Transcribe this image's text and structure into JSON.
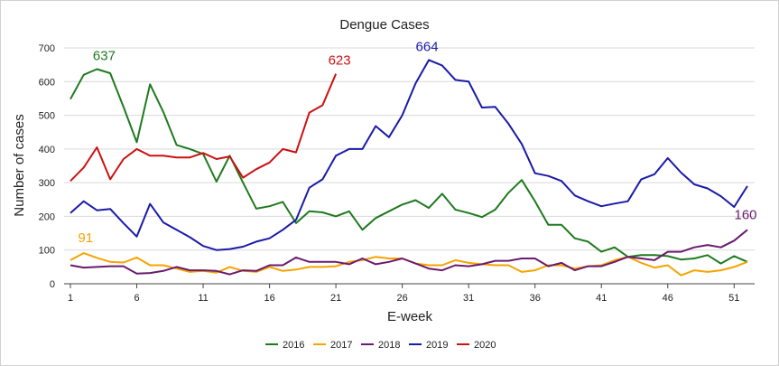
{
  "chart_data": {
    "type": "line",
    "title": "Dengue Cases",
    "xlabel": "E-week",
    "ylabel": "Number of cases",
    "xlim": [
      1,
      52
    ],
    "ylim": [
      0,
      700
    ],
    "xticks": [
      1,
      6,
      11,
      16,
      21,
      26,
      31,
      36,
      41,
      46,
      51
    ],
    "yticks": [
      0,
      100,
      200,
      300,
      400,
      500,
      600,
      700
    ],
    "grid": "horizontal",
    "legend_position": "bottom",
    "series": [
      {
        "name": "2016",
        "color": "#1e7a1e",
        "x_start": 1,
        "values": [
          548,
          620,
          637,
          625,
          525,
          420,
          592,
          510,
          412,
          400,
          385,
          303,
          380,
          300,
          223,
          230,
          243,
          180,
          215,
          212,
          200,
          215,
          160,
          195,
          215,
          235,
          248,
          225,
          267,
          220,
          210,
          198,
          220,
          270,
          308,
          245,
          175,
          175,
          135,
          125,
          95,
          108,
          80,
          85,
          85,
          82,
          72,
          75,
          85,
          60,
          82,
          65
        ]
      },
      {
        "name": "2017",
        "color": "#f5a300",
        "x_start": 1,
        "values": [
          70,
          91,
          77,
          65,
          63,
          78,
          55,
          55,
          45,
          35,
          38,
          33,
          50,
          38,
          35,
          50,
          38,
          42,
          50,
          50,
          52,
          65,
          70,
          80,
          75,
          75,
          60,
          55,
          55,
          70,
          62,
          58,
          55,
          55,
          35,
          40,
          55,
          55,
          45,
          52,
          55,
          70,
          80,
          62,
          48,
          55,
          25,
          40,
          35,
          40,
          50,
          65
        ]
      },
      {
        "name": "2018",
        "color": "#6a1b6e",
        "x_start": 1,
        "values": [
          55,
          48,
          50,
          52,
          52,
          30,
          32,
          38,
          50,
          40,
          40,
          38,
          28,
          40,
          38,
          55,
          55,
          78,
          65,
          65,
          65,
          58,
          75,
          58,
          65,
          75,
          60,
          45,
          40,
          55,
          52,
          58,
          68,
          68,
          75,
          75,
          52,
          62,
          40,
          52,
          52,
          65,
          80,
          75,
          70,
          95,
          95,
          108,
          115,
          108,
          128,
          160
        ]
      },
      {
        "name": "2019",
        "color": "#1a1aaa",
        "x_start": 1,
        "values": [
          210,
          245,
          218,
          222,
          180,
          140,
          237,
          182,
          160,
          138,
          112,
          100,
          103,
          110,
          125,
          135,
          160,
          190,
          285,
          310,
          380,
          400,
          400,
          468,
          435,
          500,
          595,
          664,
          648,
          605,
          600,
          523,
          525,
          475,
          415,
          328,
          320,
          305,
          262,
          245,
          230,
          238,
          245,
          310,
          325,
          373,
          330,
          295,
          283,
          260,
          228,
          290
        ]
      },
      {
        "name": "2020",
        "color": "#cc1111",
        "x_start": 1,
        "values": [
          305,
          345,
          405,
          310,
          370,
          400,
          380,
          380,
          375,
          375,
          388,
          370,
          378,
          315,
          340,
          360,
          400,
          390,
          508,
          530,
          623
        ]
      }
    ],
    "annotations": [
      {
        "text": "637",
        "x": 3,
        "y": 637,
        "color": "#1e7a1e"
      },
      {
        "text": "664",
        "x": 28,
        "y": 664,
        "color": "#1a1aaa"
      },
      {
        "text": "623",
        "x": 21,
        "y": 623,
        "color": "#cc1111"
      },
      {
        "text": "91",
        "x": 2,
        "y": 91,
        "color": "#f5a300"
      },
      {
        "text": "160",
        "x": 52,
        "y": 160,
        "color": "#6a1b6e"
      }
    ]
  }
}
